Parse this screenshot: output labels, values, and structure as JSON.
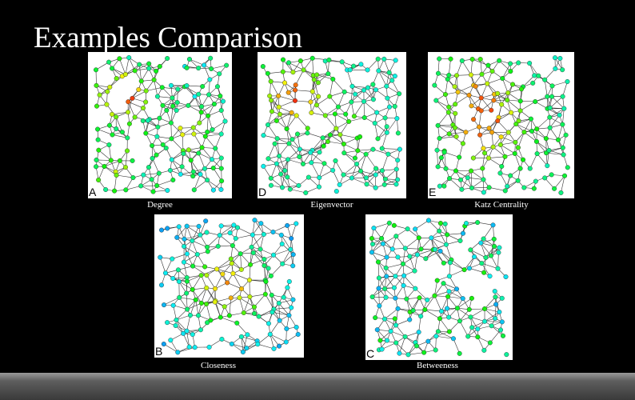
{
  "slide": {
    "title": "Examples Comparison",
    "panels": [
      {
        "letter": "A",
        "caption": "Degree"
      },
      {
        "letter": "D",
        "caption": "Eigenvector"
      },
      {
        "letter": "E",
        "caption": "Katz Centrality"
      },
      {
        "letter": "B",
        "caption": "Closeness"
      },
      {
        "letter": "C",
        "caption": "Betweeness"
      }
    ]
  }
}
